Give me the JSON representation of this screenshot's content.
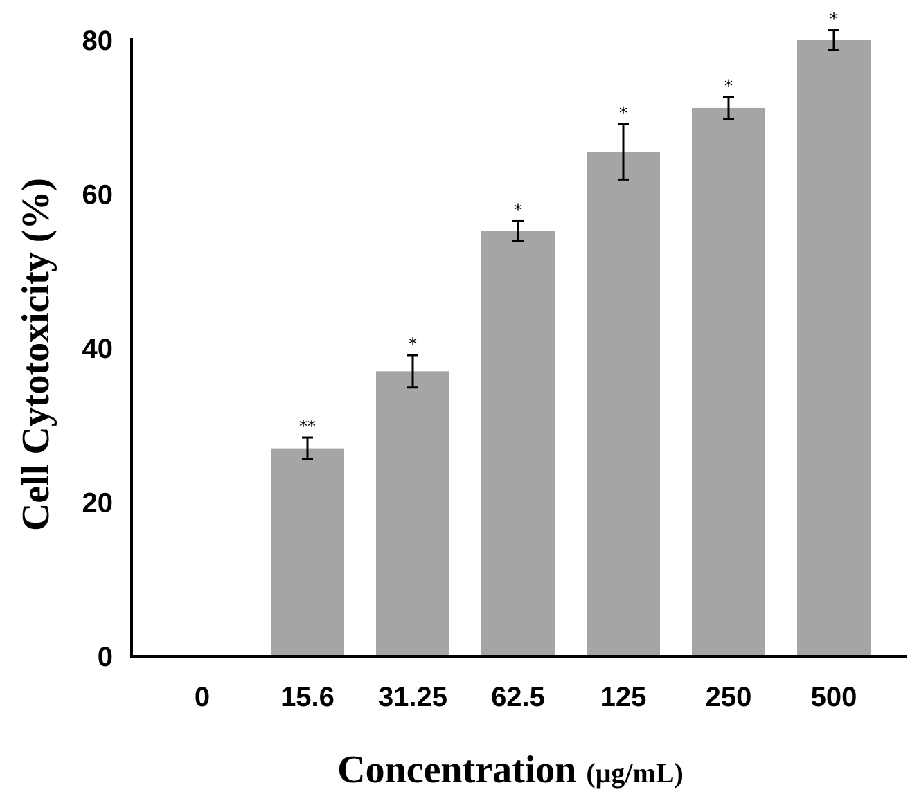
{
  "chart_data": {
    "type": "bar",
    "title": "",
    "xlabel": "Concentration",
    "xlabel_unit": "(μg/mL)",
    "ylabel": "Cell Cytotoxicity (%)",
    "ylim": [
      0,
      80
    ],
    "yticks": [
      0,
      20,
      40,
      60,
      80
    ],
    "categories": [
      "0",
      "15.6",
      "31.25",
      "62.5",
      "125",
      "250",
      "500"
    ],
    "values": [
      0,
      27,
      37,
      55.2,
      65.5,
      71.2,
      80
    ],
    "errors": [
      0,
      1.4,
      2.1,
      1.3,
      3.6,
      1.4,
      1.3
    ],
    "significance": [
      "",
      "**",
      "*",
      "*",
      "*",
      "*",
      "*"
    ],
    "bar_color": "#a5a5a5",
    "grid": false,
    "legend": "none"
  }
}
